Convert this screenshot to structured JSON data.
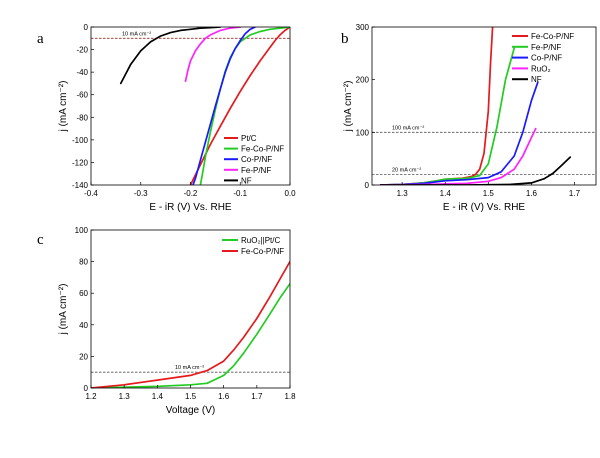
{
  "chart_data": [
    {
      "panel": "a",
      "type": "line",
      "title": "",
      "xlabel": "E - iR (V) Vs. RHE",
      "ylabel": "j (mA cm⁻²)",
      "xlim": [
        -0.4,
        0.0
      ],
      "ylim": [
        -140,
        0
      ],
      "xticks": [
        -0.4,
        -0.3,
        -0.2,
        -0.1,
        0.0
      ],
      "xtick_labels": [
        "-0.4",
        "-0.3",
        "-0.2",
        "-0.1",
        "0.0"
      ],
      "yticks": [
        -140,
        -120,
        -100,
        -80,
        -60,
        -40,
        -20,
        0
      ],
      "ytick_labels": [
        "-140",
        "-120",
        "-100",
        "-80",
        "-60",
        "-40",
        "-20",
        "0"
      ],
      "grid": false,
      "legend_position": "bottom-right",
      "refline": {
        "y": -10,
        "label": "10 mA cm⁻²",
        "color": "#8b0000"
      },
      "series": [
        {
          "name": "Pt/C",
          "color": "#e41a1c",
          "x": [
            0.0,
            -0.01,
            -0.02,
            -0.03,
            -0.04,
            -0.06,
            -0.08,
            -0.1,
            -0.12,
            -0.14,
            -0.16,
            -0.18,
            -0.2
          ],
          "y": [
            0,
            -3,
            -7,
            -12,
            -18,
            -30,
            -43,
            -57,
            -72,
            -88,
            -104,
            -122,
            -140
          ]
        },
        {
          "name": "Fe-Co-P/NF",
          "color": "#22cc22",
          "x": [
            0.0,
            -0.02,
            -0.04,
            -0.06,
            -0.08,
            -0.1,
            -0.11,
            -0.12,
            -0.13,
            -0.14,
            -0.15,
            -0.16,
            -0.17,
            -0.175,
            -0.18
          ],
          "y": [
            0,
            -1,
            -2,
            -4,
            -7,
            -13,
            -19,
            -27,
            -39,
            -55,
            -73,
            -93,
            -115,
            -128,
            -140
          ]
        },
        {
          "name": "Co-P/NF",
          "color": "#1a1aff",
          "x": [
            -0.07,
            -0.08,
            -0.09,
            -0.1,
            -0.11,
            -0.12,
            -0.13,
            -0.14,
            -0.15,
            -0.16,
            -0.17,
            -0.18,
            -0.19,
            -0.195
          ],
          "y": [
            0,
            -2,
            -6,
            -12,
            -19,
            -28,
            -40,
            -55,
            -70,
            -86,
            -102,
            -118,
            -134,
            -140
          ]
        },
        {
          "name": "Fe-P/NF",
          "color": "#ff22ff",
          "x": [
            -0.1,
            -0.12,
            -0.14,
            -0.15,
            -0.16,
            -0.17,
            -0.18,
            -0.19,
            -0.2,
            -0.205,
            -0.21
          ],
          "y": [
            0,
            -1,
            -3,
            -5,
            -7,
            -10,
            -15,
            -21,
            -30,
            -38,
            -48
          ]
        },
        {
          "name": "NF",
          "color": "#000000",
          "x": [
            -0.14,
            -0.16,
            -0.18,
            -0.2,
            -0.22,
            -0.24,
            -0.26,
            -0.28,
            -0.3,
            -0.32,
            -0.34
          ],
          "y": [
            0,
            -0.5,
            -1,
            -2,
            -3,
            -5,
            -8,
            -13,
            -21,
            -33,
            -50
          ]
        }
      ]
    },
    {
      "panel": "b",
      "type": "line",
      "title": "",
      "xlabel": "E - iR (V) Vs. RHE",
      "ylabel": "j (mA cm⁻²)",
      "xlim": [
        1.23,
        1.75
      ],
      "ylim": [
        0,
        300
      ],
      "xticks": [
        1.3,
        1.4,
        1.5,
        1.6,
        1.7
      ],
      "xtick_labels": [
        "1.3",
        "1.4",
        "1.5",
        "1.6",
        "1.7"
      ],
      "yticks": [
        0,
        100,
        200,
        300
      ],
      "ytick_labels": [
        "0",
        "100",
        "200",
        "300"
      ],
      "grid": false,
      "legend_position": "top-right",
      "reflines": [
        {
          "y": 100,
          "label": "100 mA cm⁻²",
          "color": "#555555"
        },
        {
          "y": 20,
          "label": "20 mA cm⁻²",
          "color": "#555555"
        }
      ],
      "series": [
        {
          "name": "Fe-Co-P/NF",
          "color": "#e41a1c",
          "x": [
            1.25,
            1.3,
            1.35,
            1.38,
            1.4,
            1.42,
            1.44,
            1.46,
            1.47,
            1.48,
            1.49,
            1.5,
            1.505,
            1.51
          ],
          "y": [
            0,
            1,
            4,
            8,
            11,
            12,
            13,
            16,
            20,
            30,
            60,
            140,
            230,
            300
          ]
        },
        {
          "name": "Fe-P/NF",
          "color": "#22cc22",
          "x": [
            1.25,
            1.3,
            1.35,
            1.38,
            1.4,
            1.42,
            1.44,
            1.46,
            1.48,
            1.5,
            1.52,
            1.54,
            1.56
          ],
          "y": [
            0,
            1,
            4,
            8,
            11,
            12,
            12,
            14,
            18,
            40,
            110,
            200,
            260
          ]
        },
        {
          "name": "Co-P/NF",
          "color": "#1a1aff",
          "x": [
            1.25,
            1.3,
            1.35,
            1.4,
            1.45,
            1.5,
            1.53,
            1.56,
            1.58,
            1.6,
            1.615
          ],
          "y": [
            0,
            1,
            3,
            8,
            10,
            14,
            25,
            55,
            100,
            160,
            195
          ]
        },
        {
          "name": "RuO₂",
          "color": "#ff22ff",
          "x": [
            1.25,
            1.3,
            1.35,
            1.4,
            1.45,
            1.5,
            1.53,
            1.56,
            1.58,
            1.6,
            1.61
          ],
          "y": [
            0,
            0.5,
            1,
            2,
            3,
            7,
            14,
            30,
            55,
            90,
            107
          ]
        },
        {
          "name": "NF",
          "color": "#000000",
          "x": [
            1.25,
            1.35,
            1.45,
            1.55,
            1.6,
            1.63,
            1.65,
            1.67,
            1.69
          ],
          "y": [
            0,
            0,
            0,
            1,
            4,
            12,
            22,
            37,
            53
          ]
        }
      ]
    },
    {
      "panel": "c",
      "type": "line",
      "title": "",
      "xlabel": "Voltage (V)",
      "ylabel": "j (mA cm⁻²)",
      "xlim": [
        1.2,
        1.8
      ],
      "ylim": [
        0,
        100
      ],
      "xticks": [
        1.2,
        1.3,
        1.4,
        1.5,
        1.6,
        1.7,
        1.8
      ],
      "xtick_labels": [
        "1.2",
        "1.3",
        "1.4",
        "1.5",
        "1.6",
        "1.7",
        "1.8"
      ],
      "yticks": [
        0,
        20,
        40,
        60,
        80,
        100
      ],
      "ytick_labels": [
        "0",
        "20",
        "40",
        "60",
        "80",
        "100"
      ],
      "grid": false,
      "legend_position": "top-right",
      "refline": {
        "y": 10,
        "label": "10 mA cm⁻²",
        "color": "#555555"
      },
      "series": [
        {
          "name": "RuO₂||Pt/C",
          "color": "#22cc22",
          "x": [
            1.2,
            1.3,
            1.4,
            1.5,
            1.55,
            1.6,
            1.63,
            1.66,
            1.7,
            1.74,
            1.77,
            1.8
          ],
          "y": [
            0,
            0.5,
            1,
            2,
            3,
            8,
            14,
            22,
            34,
            47,
            57,
            66
          ]
        },
        {
          "name": "Fe-Co-P/NF",
          "color": "#e41a1c",
          "x": [
            1.2,
            1.3,
            1.4,
            1.5,
            1.55,
            1.6,
            1.63,
            1.66,
            1.7,
            1.74,
            1.77,
            1.8
          ],
          "y": [
            0,
            2,
            5,
            8,
            11,
            17,
            24,
            32,
            44,
            58,
            69,
            80
          ]
        }
      ]
    }
  ],
  "labels": {
    "panel_a": "a",
    "panel_b": "b",
    "panel_c": "c"
  }
}
